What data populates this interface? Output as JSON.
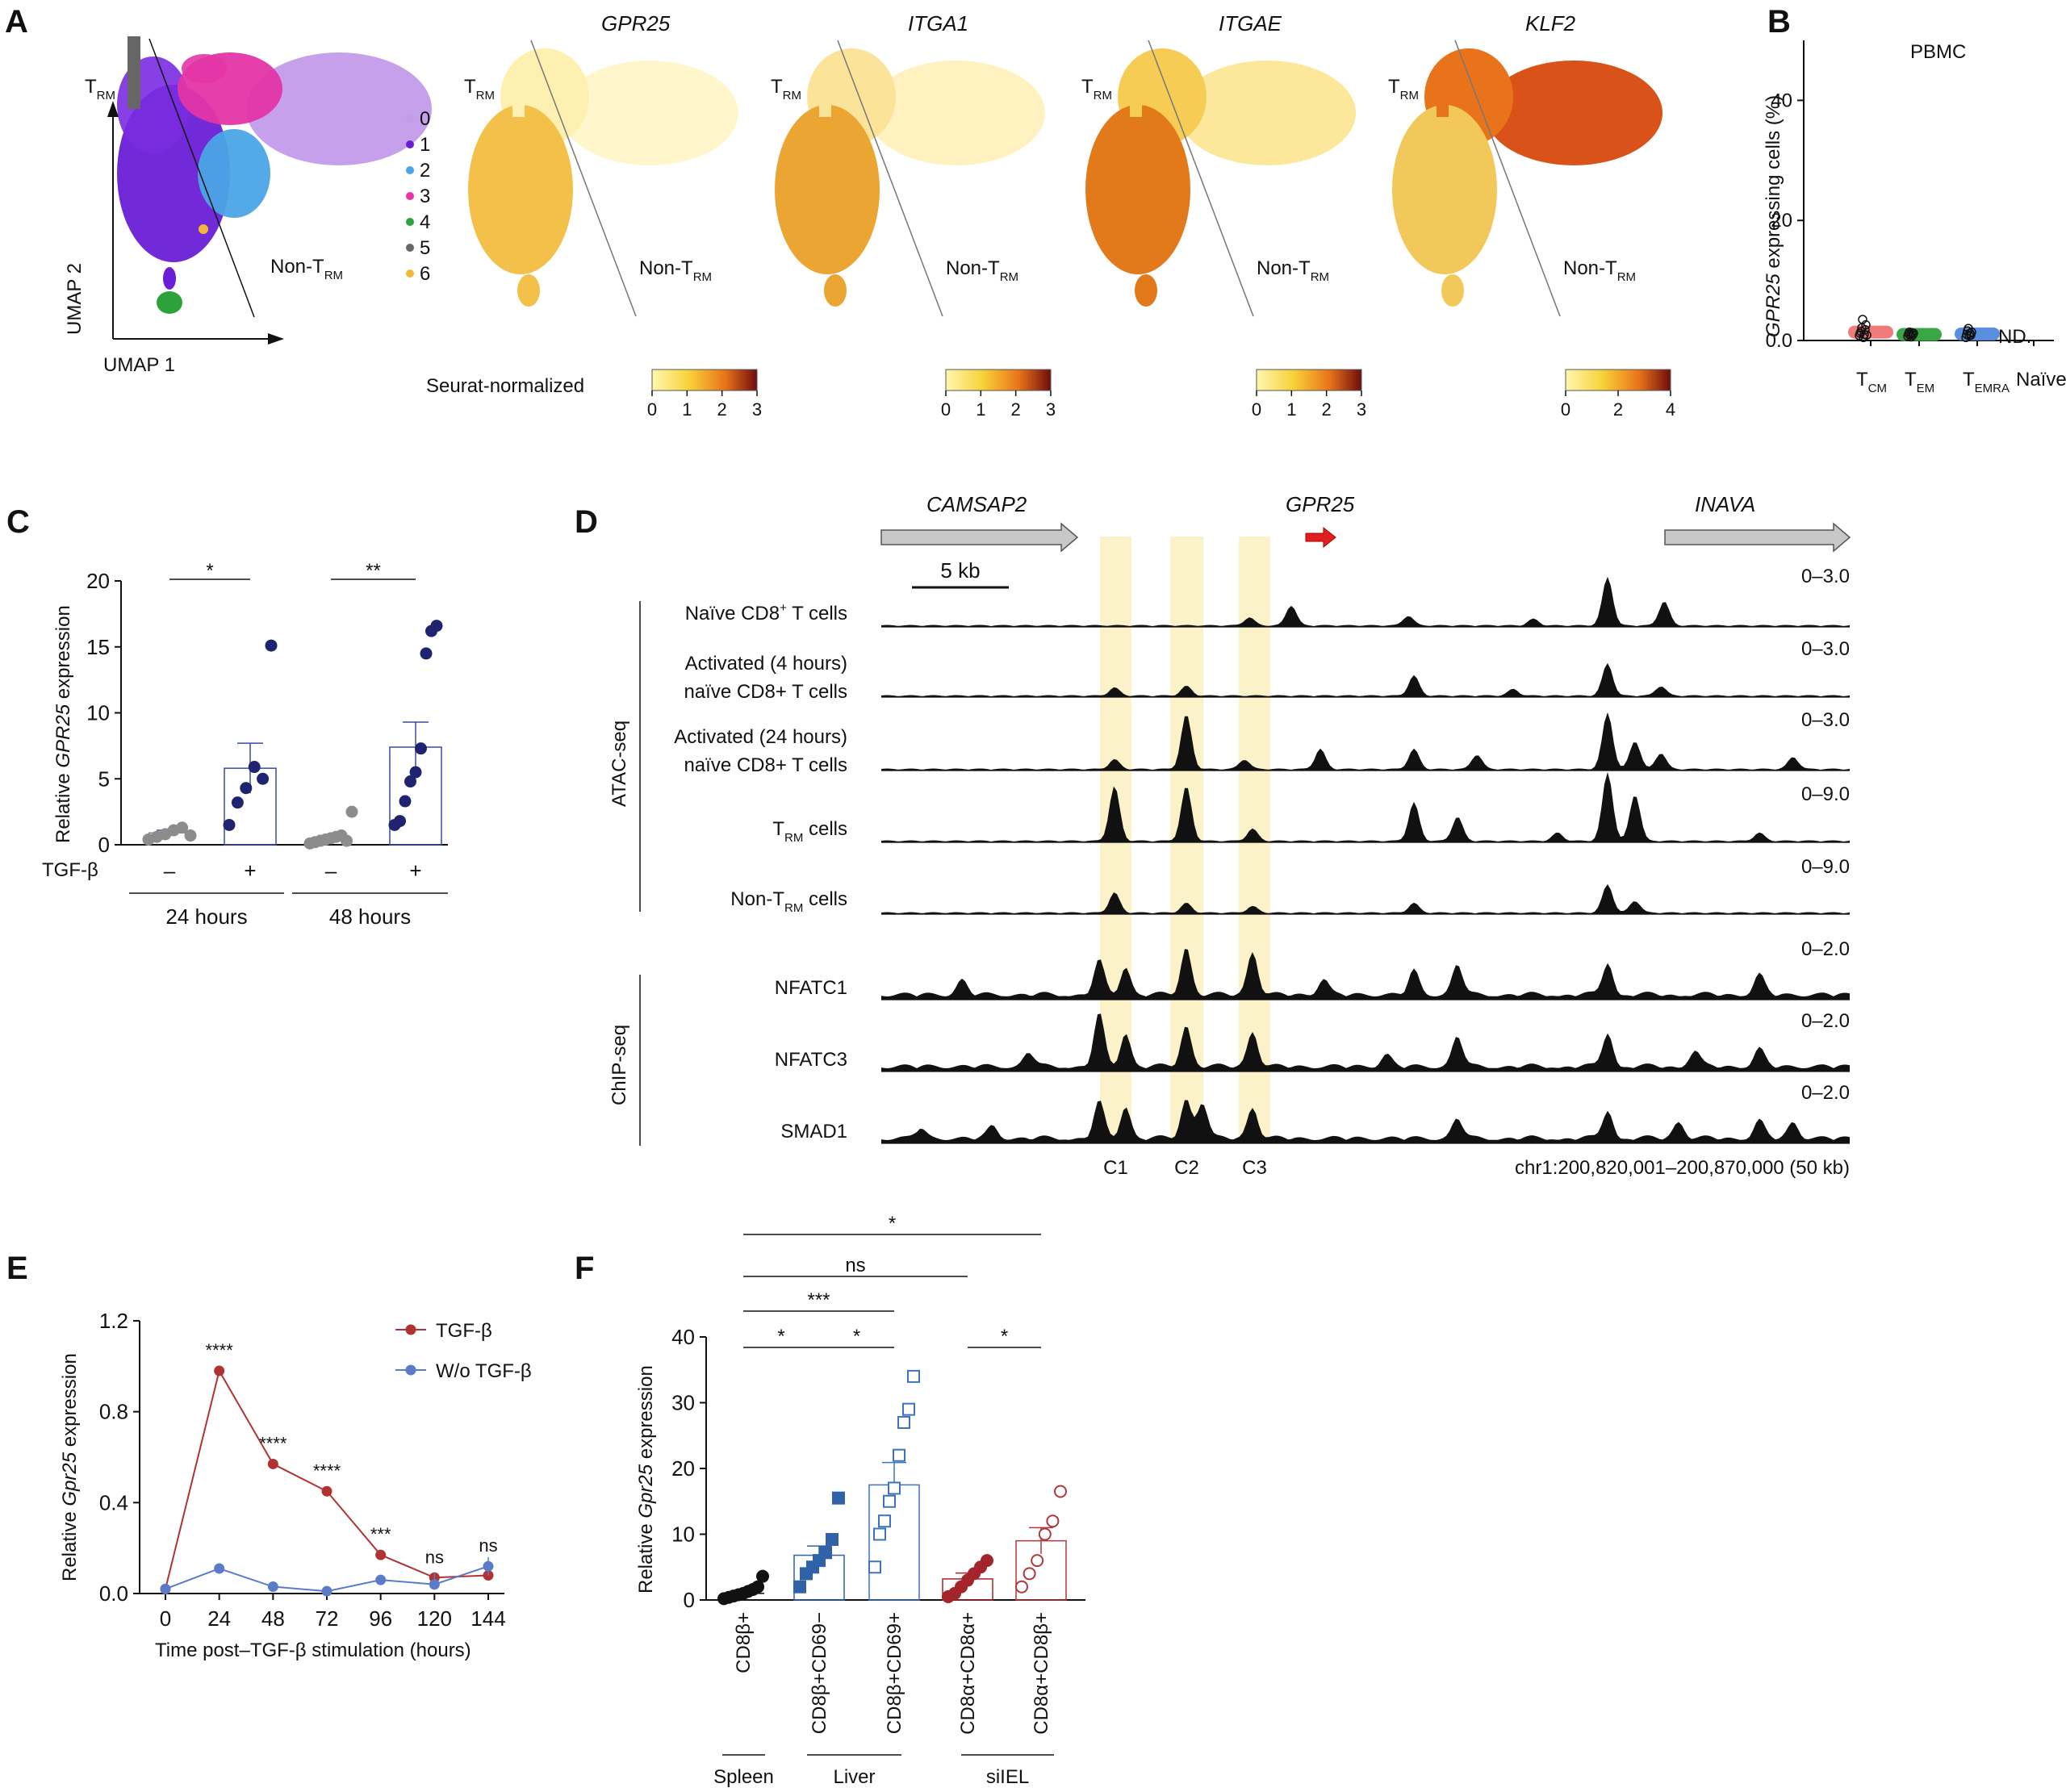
{
  "panels": {
    "A": {
      "label": "A",
      "umap_axis_x": "UMAP 1",
      "umap_axis_y": "UMAP 2",
      "trm_label": "T",
      "trm_sub": "RM",
      "non_trm_label": "Non-T",
      "non_trm_sub": "RM",
      "clusters": [
        {
          "id": "0",
          "color": "#c39bea"
        },
        {
          "id": "1",
          "color": "#6a1fd6"
        },
        {
          "id": "2",
          "color": "#4aa5e6"
        },
        {
          "id": "3",
          "color": "#e335a6"
        },
        {
          "id": "4",
          "color": "#2ca33a"
        },
        {
          "id": "5",
          "color": "#666666"
        },
        {
          "id": "6",
          "color": "#f2b63c"
        }
      ],
      "genes": [
        "GPR25",
        "ITGA1",
        "ITGAE",
        "KLF2"
      ],
      "colorbar_title": "Seurat-normalized",
      "colorbars": [
        {
          "ticks": [
            "0",
            "1",
            "2",
            "3"
          ]
        },
        {
          "ticks": [
            "0",
            "1",
            "2",
            "3"
          ]
        },
        {
          "ticks": [
            "0",
            "1",
            "2",
            "3"
          ]
        },
        {
          "ticks": [
            "0",
            "2",
            "4"
          ]
        }
      ]
    },
    "B": {
      "label": "B",
      "title": "PBMC",
      "ylabel_gene": "GPR25",
      "ylabel_rest": " expressing cells (%)",
      "yticks": [
        "0.0",
        "20",
        "40"
      ],
      "categories": [
        {
          "main": "T",
          "sub": "CM",
          "color": "#f07b7b"
        },
        {
          "main": "T",
          "sub": "EM",
          "color": "#3aa646"
        },
        {
          "main": "T",
          "sub": "EMRA",
          "color": "#5a8fe0"
        },
        {
          "main": "Naïve",
          "sub": "",
          "color": "#999999"
        }
      ],
      "nd_label": "ND."
    },
    "C": {
      "label": "C",
      "ylabel_pre": "Relative ",
      "ylabel_gene": "GPR25",
      "ylabel_post": " expression",
      "yticks": [
        "0",
        "5",
        "10",
        "15",
        "20"
      ],
      "treatment_label": "TGF-β",
      "minus": "–",
      "plus": "+",
      "groups": [
        "24 hours",
        "48 hours"
      ],
      "sig": [
        "*",
        "**"
      ]
    },
    "D": {
      "label": "D",
      "genes": [
        {
          "name": "CAMSAP2",
          "color": "#111111"
        },
        {
          "name": "GPR25",
          "color": "#d11f1f"
        },
        {
          "name": "INAVA",
          "color": "#111111"
        }
      ],
      "scale_bar": "5 kb",
      "assay_atac": "ATAC-seq",
      "assay_chip": "ChIP-seq",
      "tracks": [
        {
          "line1": "Naïve CD8",
          "sup": "+",
          "line1b": " T cells",
          "line2": "",
          "range": "0–3.0"
        },
        {
          "line1": "Activated (4 hours)",
          "sup": "",
          "line1b": "",
          "line2": "naïve CD8+ T cells",
          "range": "0–3.0"
        },
        {
          "line1": "Activated (24 hours)",
          "sup": "",
          "line1b": "",
          "line2": "naïve CD8+ T cells",
          "range": "0–3.0"
        },
        {
          "line1": "T",
          "sup": "",
          "line1b": " cells",
          "line2": "",
          "range": "0–9.0"
        },
        {
          "line1": "Non-T",
          "sup": "",
          "line1b": " cells",
          "line2": "",
          "range": "0–9.0"
        },
        {
          "line1": "NFATC1",
          "sup": "",
          "line1b": "",
          "line2": "",
          "range": "0–2.0"
        },
        {
          "line1": "NFATC3",
          "sup": "",
          "line1b": "",
          "line2": "",
          "range": "0–2.0"
        },
        {
          "line1": "SMAD1",
          "sup": "",
          "line1b": "",
          "line2": "",
          "range": "0–2.0"
        }
      ],
      "regions": [
        "C1",
        "C2",
        "C3"
      ],
      "coords": "chr1:200,820,001–200,870,000 (50 kb)"
    },
    "E": {
      "label": "E",
      "ylabel_pre": "Relative ",
      "ylabel_gene": "Gpr25",
      "ylabel_post": " expression",
      "xlabel": "Time post–TGF-β stimulation (hours)",
      "yticks": [
        "0.0",
        "0.4",
        "0.8",
        "1.2"
      ],
      "legend": [
        "TGF-β",
        "W/o TGF-β"
      ]
    },
    "F": {
      "label": "F",
      "ylabel_pre": "Relative ",
      "ylabel_gene": "Gpr25",
      "ylabel_post": " expression",
      "yticks": [
        "0",
        "10",
        "20",
        "30",
        "40"
      ],
      "categories": [
        "CD8β+",
        "CD8β+CD69−",
        "CD8β+CD69+",
        "CD8α+CD8α+",
        "CD8α+CD8β+"
      ],
      "tissues": [
        "Spleen",
        "Liver",
        "siIEL"
      ],
      "sig": [
        "*",
        "ns",
        "***",
        "*",
        "*",
        "*"
      ]
    }
  },
  "chart_data": [
    {
      "type": "scatter",
      "panel": "B",
      "title": "PBMC",
      "ylabel": "GPR25 expressing cells (%)",
      "ylim": [
        0,
        50
      ],
      "categories": [
        "TCM",
        "TEM",
        "TEMRA",
        "Naïve"
      ],
      "series": [
        {
          "name": "TCM",
          "values": [
            0.8,
            1.2,
            1.5,
            2.1,
            3.5,
            0.5,
            1.0,
            1.8,
            2.6,
            0.9
          ]
        },
        {
          "name": "TEM",
          "values": [
            0.7,
            1.1,
            1.4,
            1.0,
            0.6,
            1.3,
            0.9,
            1.2
          ]
        },
        {
          "name": "TEMRA",
          "values": [
            0.5,
            1.0,
            1.6,
            2.0,
            0.8,
            1.2,
            0.9,
            1.4
          ]
        }
      ],
      "means": [
        1.4,
        1.0,
        1.1
      ]
    },
    {
      "type": "bar",
      "panel": "C",
      "ylabel": "Relative GPR25 expression",
      "ylim": [
        0,
        20
      ],
      "categories": [
        "24 hours −",
        "24 hours +",
        "48 hours −",
        "48 hours +"
      ],
      "values": [
        0.9,
        5.8,
        0.5,
        7.4
      ],
      "sem": [
        0.2,
        1.9,
        0.2,
        1.9
      ],
      "points": [
        [
          0.4,
          0.6,
          0.8,
          1.1,
          1.3,
          0.7
        ],
        [
          1.5,
          3.2,
          4.3,
          5.9,
          5.0,
          15.1
        ],
        [
          0.1,
          0.2,
          0.3,
          0.4,
          0.5,
          0.6,
          0.7,
          0.3,
          2.5
        ],
        [
          1.5,
          1.8,
          3.3,
          4.8,
          5.5,
          7.3,
          14.5,
          16.2,
          16.6
        ]
      ]
    },
    {
      "type": "line",
      "panel": "E",
      "xlabel": "Time post–TGF-β stimulation (hours)",
      "ylabel": "Relative Gpr25 expression",
      "ylim": [
        0,
        1.2
      ],
      "x": [
        0,
        24,
        48,
        72,
        96,
        120,
        144
      ],
      "series": [
        {
          "name": "TGF-β",
          "color": "#b03333",
          "values": [
            0.02,
            0.98,
            0.57,
            0.45,
            0.17,
            0.07,
            0.08
          ]
        },
        {
          "name": "W/o TGF-β",
          "color": "#5b7bc9",
          "values": [
            0.02,
            0.11,
            0.03,
            0.01,
            0.06,
            0.04,
            0.12
          ]
        }
      ],
      "annotations": [
        "",
        "****",
        "****",
        "****",
        "***",
        "ns",
        "ns"
      ]
    },
    {
      "type": "bar",
      "panel": "F",
      "ylabel": "Relative Gpr25 expression",
      "ylim": [
        0,
        40
      ],
      "categories": [
        "CD8β+",
        "CD8β+CD69−",
        "CD8β+CD69+",
        "CD8α+CD8α+",
        "CD8α+CD8β+"
      ],
      "values": [
        1.0,
        6.8,
        17.5,
        3.2,
        9.0
      ],
      "sem": [
        0.3,
        1.4,
        3.4,
        0.9,
        2.0
      ],
      "points": [
        [
          0.2,
          0.4,
          0.6,
          0.8,
          1.0,
          1.3,
          1.6,
          2.0,
          3.6
        ],
        [
          2.0,
          4.0,
          5.0,
          6.0,
          7.2,
          9.2,
          15.5
        ],
        [
          5.0,
          10.0,
          12.0,
          15.0,
          17.0,
          22.0,
          27.0,
          29.0,
          34.0
        ],
        [
          0.5,
          1.0,
          2.0,
          3.0,
          4.0,
          5.0,
          6.0
        ],
        [
          2.0,
          4.0,
          6.0,
          10.0,
          12.0,
          16.5
        ]
      ]
    }
  ]
}
